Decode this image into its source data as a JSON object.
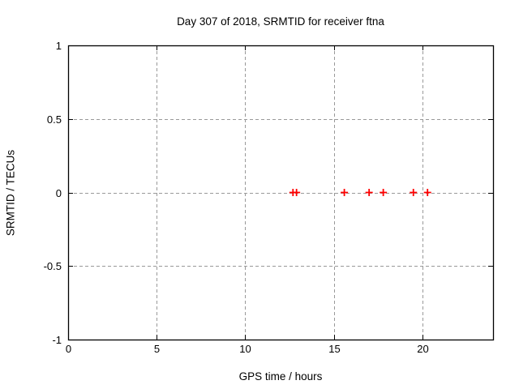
{
  "figure": {
    "title": "Day 307 of 2018, SRMTID for receiver ftna",
    "xlabel": "GPS time / hours",
    "ylabel": "SRMTID / TECUs"
  },
  "chart_data": {
    "type": "scatter",
    "title": "Day 307 of 2018, SRMTID for receiver ftna",
    "xlabel": "GPS time / hours",
    "ylabel": "SRMTID / TECUs",
    "xlim": [
      0,
      24
    ],
    "ylim": [
      -1,
      1
    ],
    "xticks": [
      0,
      5,
      10,
      15,
      20
    ],
    "yticks": [
      1,
      0.5,
      0,
      -0.5,
      -1
    ],
    "grid": true,
    "grid_style": "dashed",
    "legend": "none",
    "marker": "plus",
    "colors": {
      "marker": "#ff0000",
      "grid": "#999999",
      "axis": "#000000",
      "background": "#ffffff"
    },
    "series": [
      {
        "name": "SRMTID",
        "x": [
          12.7,
          12.9,
          15.6,
          17.0,
          17.8,
          19.5,
          20.3
        ],
        "y": [
          0,
          0,
          0,
          0,
          0,
          0,
          0
        ]
      }
    ]
  }
}
